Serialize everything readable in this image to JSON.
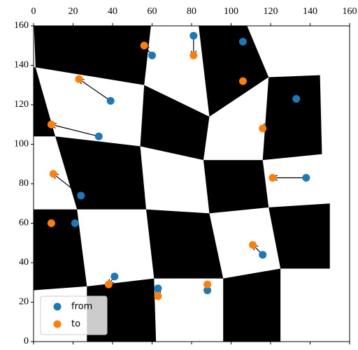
{
  "chart_data": {
    "type": "scatter",
    "series": [
      {
        "name": "from",
        "color": "#1f77b4",
        "x": [
          81,
          60,
          106,
          39,
          133,
          33,
          138,
          24,
          21,
          116,
          41,
          63,
          88
        ],
        "values": [
          155,
          145,
          152,
          122,
          123,
          104,
          83,
          74,
          60,
          44,
          33,
          27,
          26
        ]
      },
      {
        "name": "to",
        "color": "#ff7f0e",
        "x": [
          81,
          56,
          106,
          23,
          116,
          9,
          121,
          10,
          9,
          111,
          38,
          63,
          88
        ],
        "values": [
          145,
          150,
          132,
          133,
          108,
          110,
          83,
          85,
          60,
          49,
          29,
          23,
          29
        ]
      }
    ],
    "xlim": [
      0,
      160
    ],
    "ylim": [
      0,
      160
    ],
    "xticks": [
      0,
      20,
      40,
      60,
      80,
      100,
      120,
      140,
      160
    ],
    "yticks": [
      0,
      20,
      40,
      60,
      80,
      100,
      120,
      140,
      160
    ],
    "legend": "lower left"
  }
}
